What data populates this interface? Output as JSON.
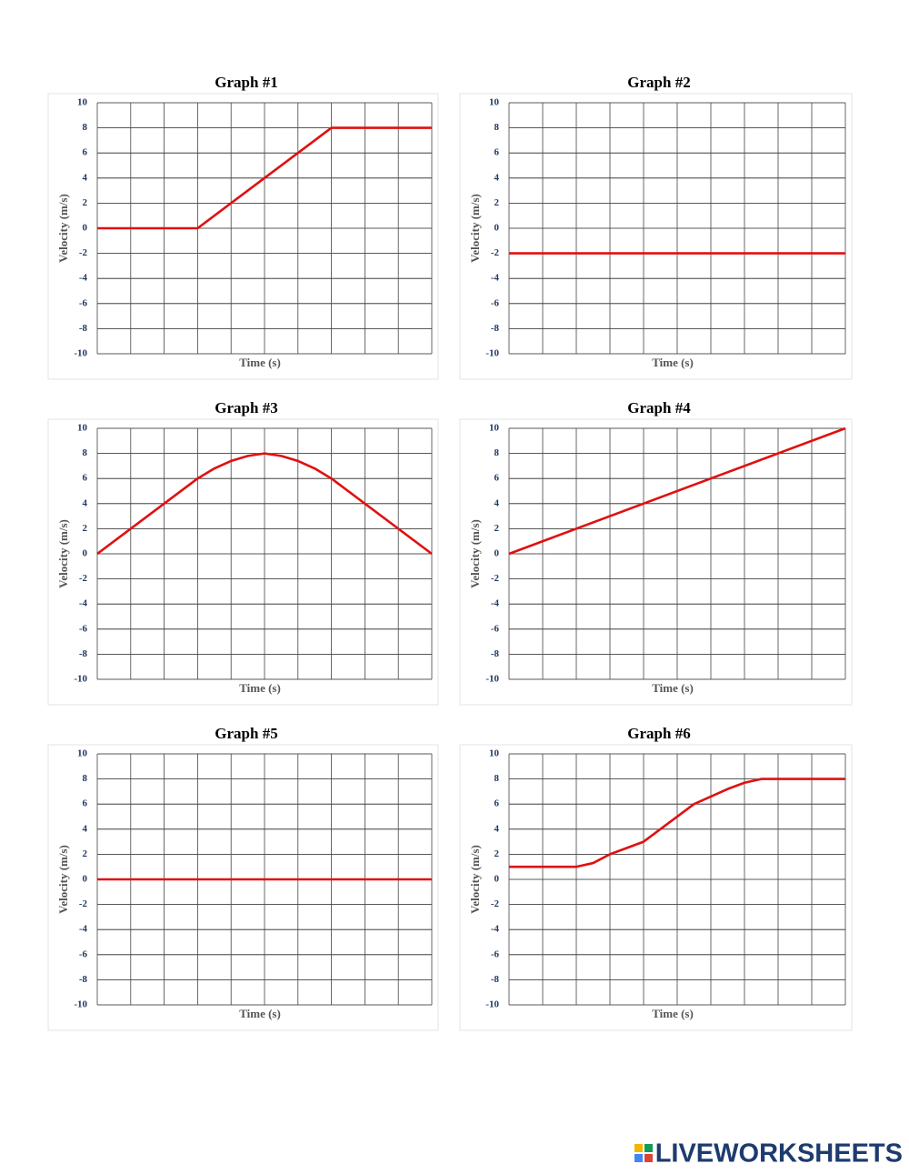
{
  "chart_data": [
    {
      "type": "line",
      "title": "Graph #1",
      "x_label": "Time (s)",
      "y_label": "Velocity (m/s)",
      "color": "#e01010",
      "x": [
        0,
        3,
        7,
        10
      ],
      "values": [
        0,
        0,
        8,
        8
      ],
      "xlim": [
        0,
        10
      ],
      "ylim": [
        -10,
        10
      ],
      "yticks": [
        -10,
        -8,
        -6,
        -4,
        -2,
        0,
        2,
        4,
        6,
        8,
        10
      ],
      "grid": true
    },
    {
      "type": "line",
      "title": "Graph #2",
      "x_label": "Time (s)",
      "y_label": "Velocity (m/s)",
      "color": "#e01010",
      "x": [
        0,
        10
      ],
      "values": [
        -2,
        -2
      ],
      "xlim": [
        0,
        10
      ],
      "ylim": [
        -10,
        10
      ],
      "yticks": [
        -10,
        -8,
        -6,
        -4,
        -2,
        0,
        2,
        4,
        6,
        8,
        10
      ],
      "grid": true
    },
    {
      "type": "line",
      "title": "Graph #3",
      "x_label": "Time (s)",
      "y_label": "Velocity (m/s)",
      "color": "#e01010",
      "x": [
        0,
        3,
        3.5,
        4,
        4.5,
        5,
        5.5,
        6,
        6.5,
        7,
        10
      ],
      "values": [
        0,
        6,
        6.8,
        7.4,
        7.8,
        8,
        7.8,
        7.4,
        6.8,
        6,
        0
      ],
      "xlim": [
        0,
        10
      ],
      "ylim": [
        -10,
        10
      ],
      "yticks": [
        -10,
        -8,
        -6,
        -4,
        -2,
        0,
        2,
        4,
        6,
        8,
        10
      ],
      "grid": true
    },
    {
      "type": "line",
      "title": "Graph #4",
      "x_label": "Time (s)",
      "y_label": "Velocity (m/s)",
      "color": "#e01010",
      "x": [
        0,
        10
      ],
      "values": [
        0,
        10
      ],
      "xlim": [
        0,
        10
      ],
      "ylim": [
        -10,
        10
      ],
      "yticks": [
        -10,
        -8,
        -6,
        -4,
        -2,
        0,
        2,
        4,
        6,
        8,
        10
      ],
      "grid": true
    },
    {
      "type": "line",
      "title": "Graph #5",
      "x_label": "Time (s)",
      "y_label": "Velocity (m/s)",
      "color": "#e01010",
      "x": [
        0,
        10
      ],
      "values": [
        0,
        0
      ],
      "xlim": [
        0,
        10
      ],
      "ylim": [
        -10,
        10
      ],
      "yticks": [
        -10,
        -8,
        -6,
        -4,
        -2,
        0,
        2,
        4,
        6,
        8,
        10
      ],
      "grid": true
    },
    {
      "type": "line",
      "title": "Graph #6",
      "x_label": "Time (s)",
      "y_label": "Velocity (m/s)",
      "color": "#e01010",
      "x": [
        0,
        2,
        2.5,
        3,
        4,
        5.5,
        6.5,
        7,
        7.5,
        10
      ],
      "values": [
        1,
        1,
        1.3,
        2,
        3,
        6,
        7.2,
        7.7,
        8,
        8
      ],
      "xlim": [
        0,
        10
      ],
      "ylim": [
        -10,
        10
      ],
      "yticks": [
        -10,
        -8,
        -6,
        -4,
        -2,
        0,
        2,
        4,
        6,
        8,
        10
      ],
      "grid": true
    }
  ],
  "watermark": "LIVEWORKSHEETS"
}
